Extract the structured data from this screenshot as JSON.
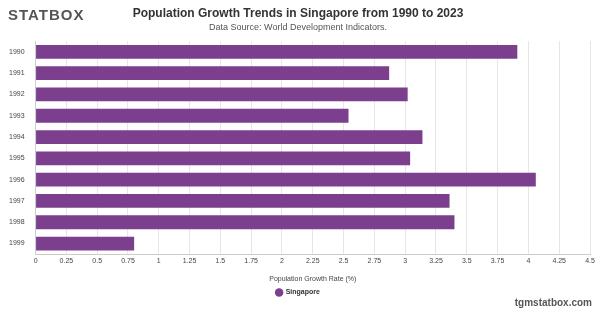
{
  "chart_data": {
    "type": "bar",
    "orientation": "horizontal",
    "title": "Population Growth Trends in Singapore from 1990 to 2023",
    "subtitle": "Data Source: World Development Indicators.",
    "logo": "STATBOX",
    "watermark": "tgmstatbox.com",
    "x_label": "Population Growth Rate (%)",
    "categories": [
      "1990",
      "1991",
      "1992",
      "1993",
      "1994",
      "1995",
      "1996",
      "1997",
      "1998",
      "1999"
    ],
    "series": [
      {
        "name": "Singapore",
        "color": "#7b3f8e",
        "values": [
          3.91,
          2.87,
          3.02,
          2.54,
          3.14,
          3.04,
          4.06,
          3.36,
          3.4,
          0.8
        ]
      }
    ],
    "xlim": [
      0,
      4.5
    ],
    "xticks": [
      0,
      0.25,
      0.5,
      0.75,
      1,
      1.25,
      1.5,
      1.75,
      2,
      2.25,
      2.5,
      2.75,
      3,
      3.25,
      3.5,
      3.75,
      4,
      4.25,
      4.5
    ],
    "grid": true,
    "legend": "bottom"
  }
}
